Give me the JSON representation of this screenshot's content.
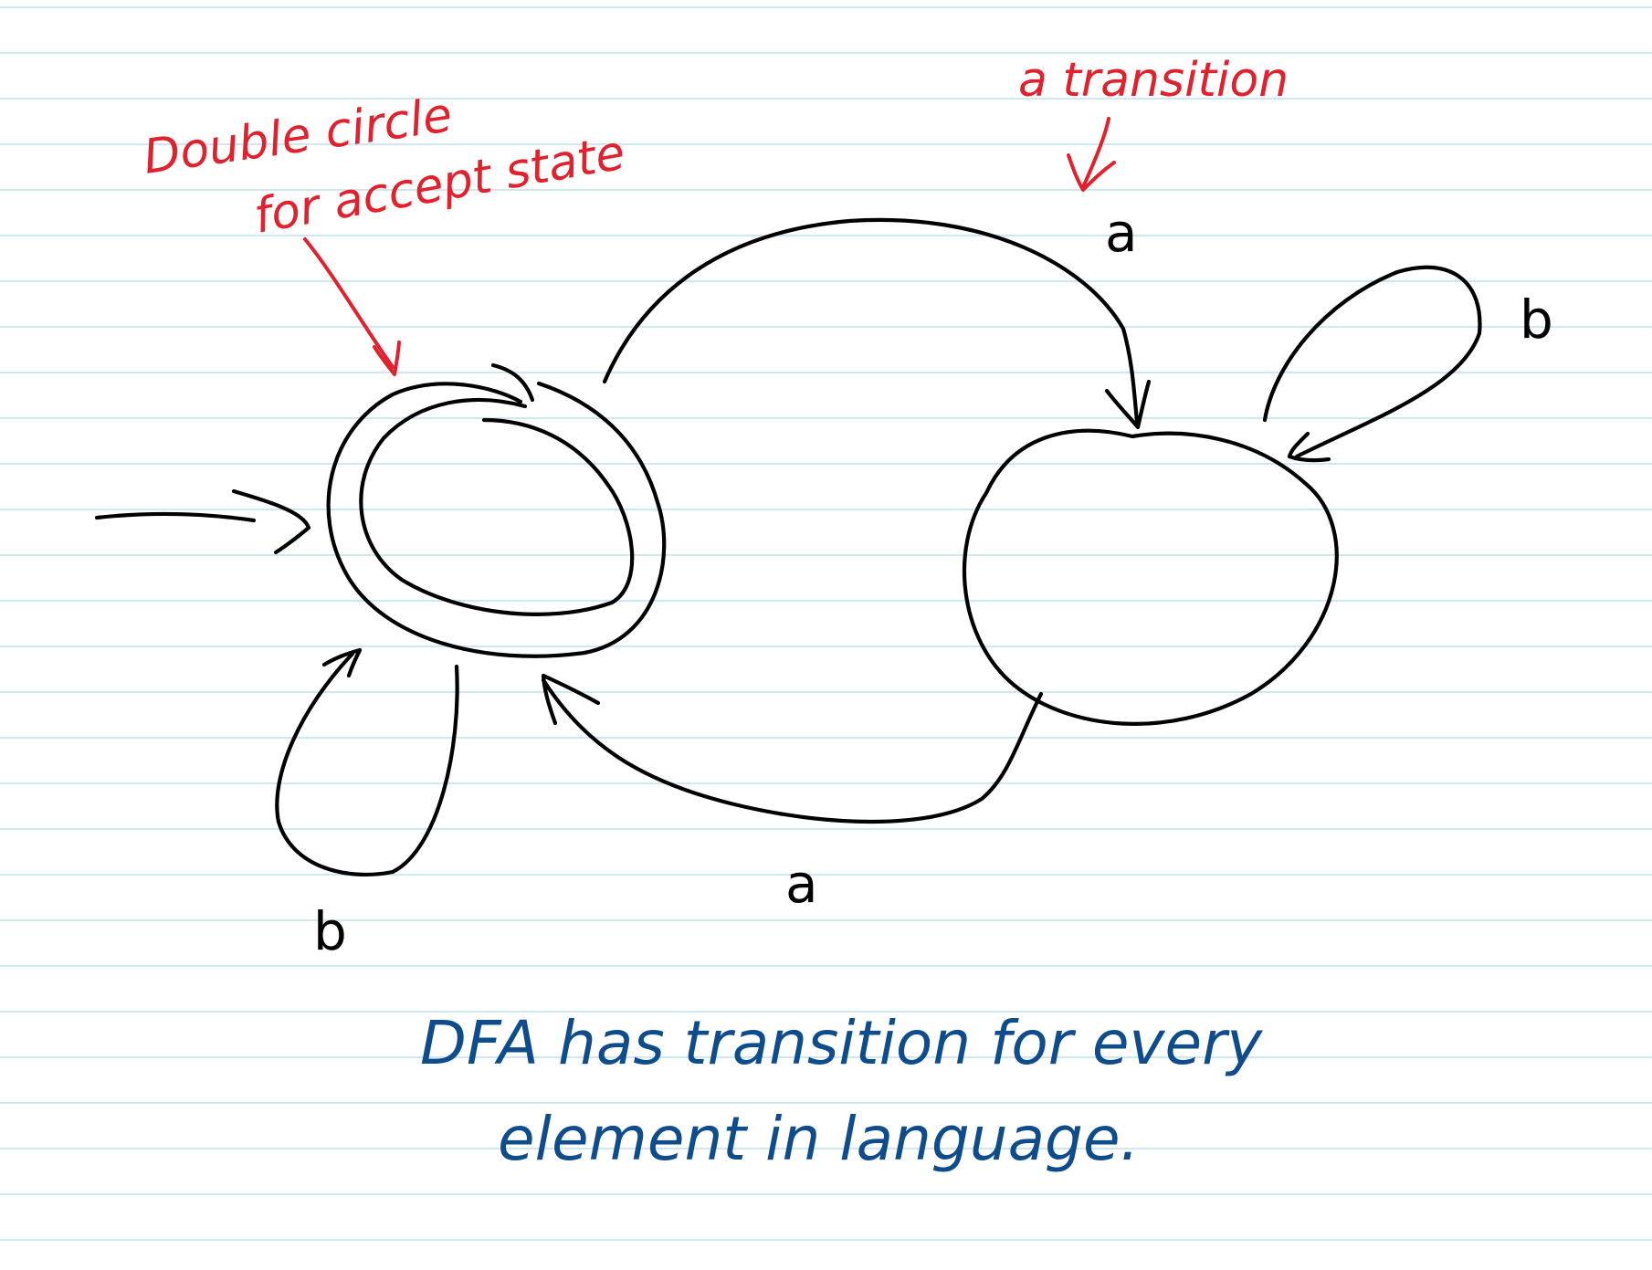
{
  "colors": {
    "paper": "#ffffff",
    "ruling": "#cfe7f3",
    "ink": "#000000",
    "annotation_red": "#e0212e",
    "annotation_blue": "#0f4c8c"
  },
  "diagram": {
    "states": [
      {
        "id": "accept-state",
        "accepting": true,
        "start": true
      },
      {
        "id": "other-state",
        "accepting": false,
        "start": false
      }
    ],
    "transitions": [
      {
        "from": "accept-state",
        "to": "other-state",
        "label": "a"
      },
      {
        "from": "other-state",
        "to": "other-state",
        "label": "b"
      },
      {
        "from": "other-state",
        "to": "accept-state",
        "label": "a"
      },
      {
        "from": "accept-state",
        "to": "accept-state",
        "label": "b"
      }
    ]
  },
  "annotations": {
    "accept_state_note_line1": "Double circle",
    "accept_state_note_line2": "for accept state",
    "transition_note": "a transition",
    "dfa_note_line1": "DFA has transition for every",
    "dfa_note_line2": "element in language."
  }
}
